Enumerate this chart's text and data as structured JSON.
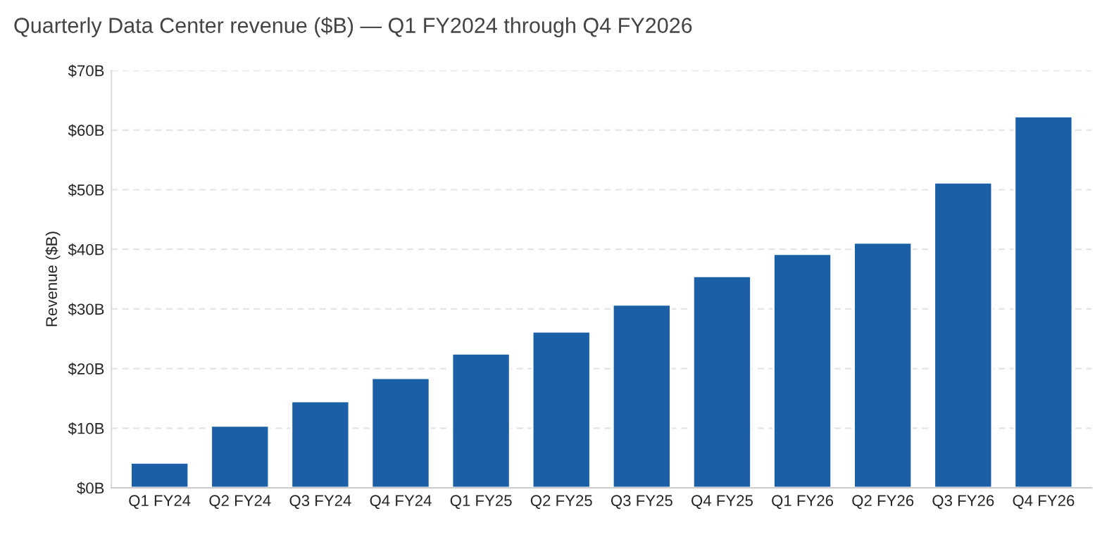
{
  "chart_data": {
    "type": "bar",
    "title": "Quarterly Data Center revenue ($B) — Q1 FY2024 through Q4 FY2026",
    "ylabel": "Revenue ($B)",
    "categories": [
      "Q1 FY24",
      "Q2 FY24",
      "Q3 FY24",
      "Q4 FY24",
      "Q1 FY25",
      "Q2 FY25",
      "Q3 FY25",
      "Q4 FY25",
      "Q1 FY26",
      "Q2 FY26",
      "Q3 FY26",
      "Q4 FY26"
    ],
    "values": [
      4.2,
      10.4,
      14.5,
      18.4,
      22.5,
      26.2,
      30.7,
      35.5,
      39.2,
      41.1,
      51.2,
      62.3
    ],
    "color": "#1b5fa6",
    "ylim": [
      0,
      70
    ],
    "yticks": [
      {
        "value": 0,
        "label": "$0B"
      },
      {
        "value": 10,
        "label": "$10B"
      },
      {
        "value": 20,
        "label": "$20B"
      },
      {
        "value": 30,
        "label": "$30B"
      },
      {
        "value": 40,
        "label": "$40B"
      },
      {
        "value": 50,
        "label": "$50B"
      },
      {
        "value": 60,
        "label": "$60B"
      },
      {
        "value": 70,
        "label": "$70B"
      }
    ],
    "grid": "y"
  }
}
